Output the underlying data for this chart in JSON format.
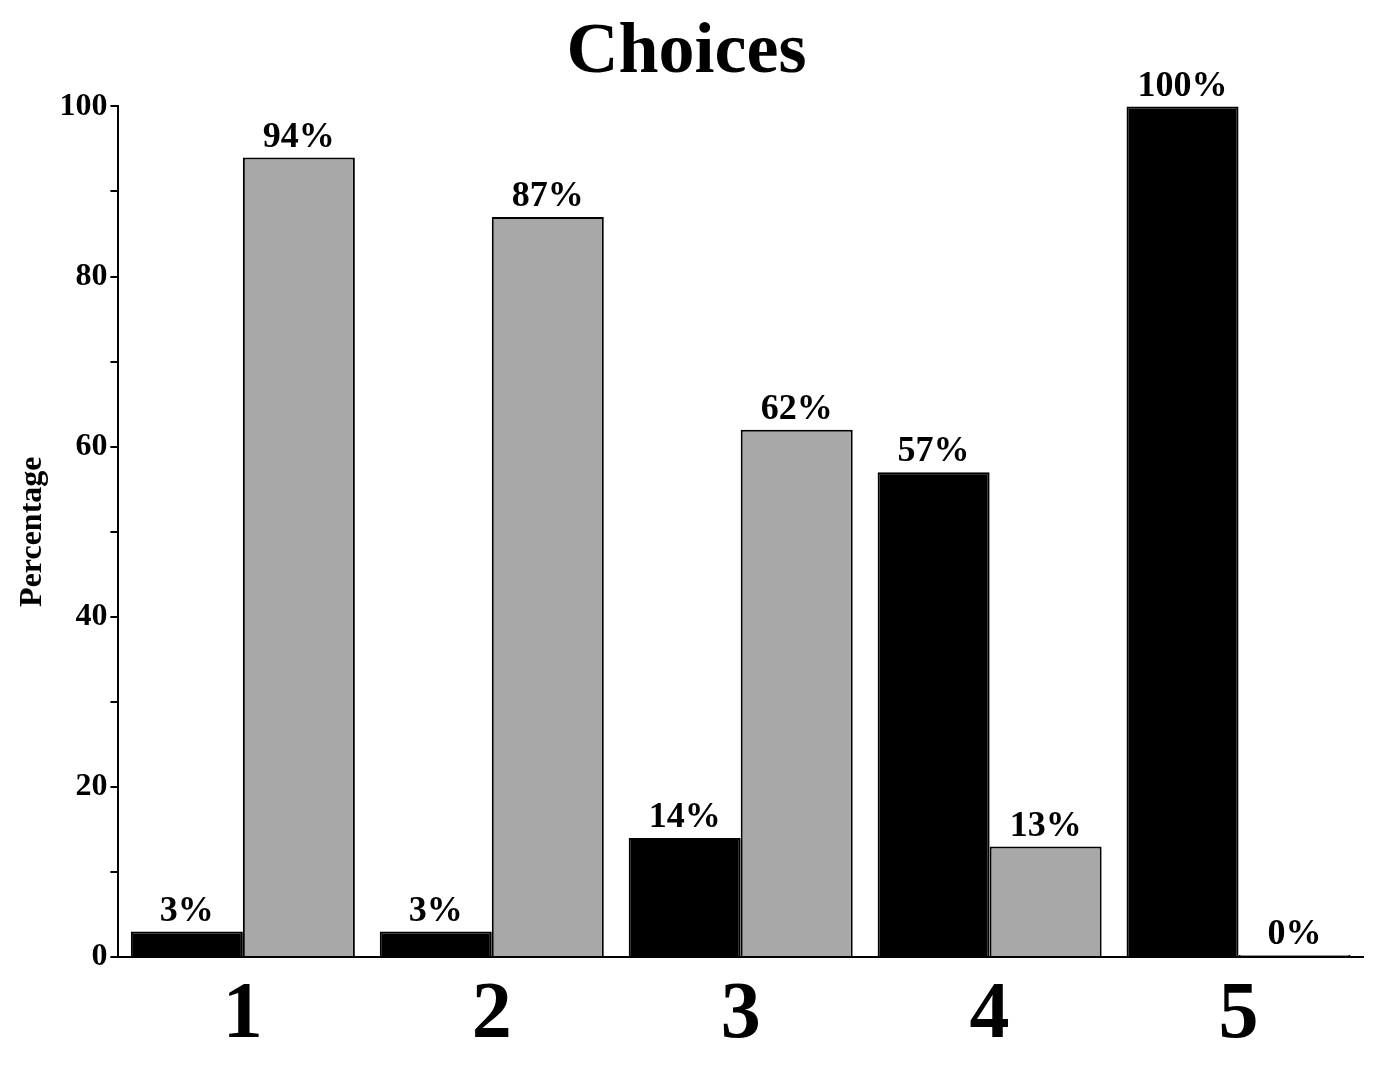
{
  "chart_data": {
    "type": "bar",
    "title": "Choices",
    "ylabel": "Percentage",
    "categories": [
      "1",
      "2",
      "3",
      "4",
      "5"
    ],
    "series": [
      {
        "color": "#000000",
        "values": [
          3,
          3,
          14,
          57,
          100
        ],
        "value_labels": [
          "3%",
          "3%",
          "14%",
          "57%",
          "100%"
        ]
      },
      {
        "color": "#a8a8a8",
        "values": [
          94,
          87,
          62,
          13,
          0
        ],
        "value_labels": [
          "94%",
          "87%",
          "62%",
          "13%",
          "0%"
        ]
      }
    ],
    "ylim": [
      0,
      100
    ],
    "yticks": [
      0,
      {
        "value": 10,
        "label": null
      },
      20,
      {
        "value": 30,
        "label": null
      },
      40,
      {
        "value": 50,
        "label": null
      },
      60,
      {
        "value": 70,
        "label": null
      },
      80,
      {
        "value": 90,
        "label": null
      },
      100
    ],
    "grid": false,
    "legend": false
  }
}
